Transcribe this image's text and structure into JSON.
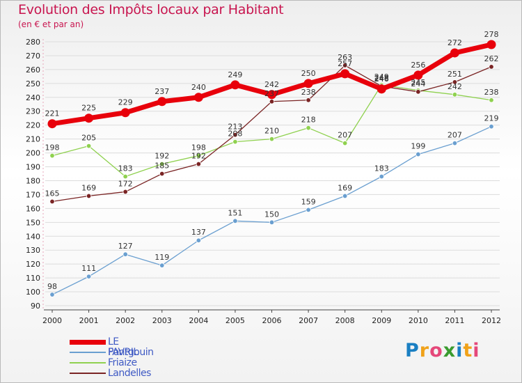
{
  "title": "Evolution des Impôts locaux par Habitant",
  "subtitle": "(en € et par an)",
  "logo_text": "Proxiti",
  "chart_data": {
    "type": "line",
    "title": "Evolution des Impôts locaux par Habitant",
    "subtitle": "(en € et par an)",
    "x": [
      2000,
      2001,
      2002,
      2003,
      2004,
      2005,
      2006,
      2007,
      2008,
      2009,
      2010,
      2011,
      2012
    ],
    "ylim": [
      90,
      280
    ],
    "yticks": [
      90,
      100,
      110,
      120,
      130,
      140,
      150,
      160,
      170,
      180,
      190,
      200,
      210,
      220,
      230,
      240,
      250,
      260,
      270,
      280
    ],
    "grid": "horizontal",
    "legend_position": "bottom-left",
    "series": [
      {
        "name": "LE FAVRIL",
        "color": "#e8000b",
        "values": [
          221,
          225,
          229,
          237,
          240,
          249,
          242,
          250,
          257,
          246,
          256,
          272,
          278
        ]
      },
      {
        "name": "Pontgouin",
        "color": "#6a9fd0",
        "values": [
          98,
          111,
          127,
          119,
          137,
          151,
          150,
          159,
          169,
          183,
          199,
          207,
          219
        ]
      },
      {
        "name": "Friaize",
        "color": "#8fd14f",
        "values": [
          198,
          205,
          183,
          192,
          198,
          208,
          210,
          218,
          207,
          249,
          245,
          242,
          238
        ]
      },
      {
        "name": "Landelles",
        "color": "#7a2424",
        "values": [
          165,
          169,
          172,
          185,
          192,
          213,
          237,
          238,
          263,
          248,
          244,
          251,
          262
        ]
      }
    ]
  }
}
